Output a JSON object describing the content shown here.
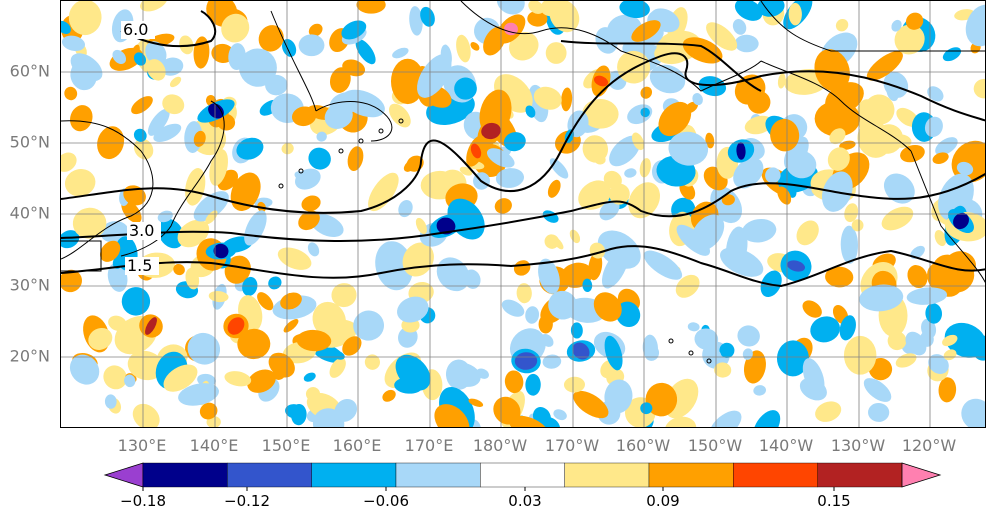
{
  "map": {
    "lat_labels": [
      "60°N",
      "50°N",
      "40°N",
      "30°N",
      "20°N"
    ],
    "lon_labels": [
      "130°E",
      "140°E",
      "150°E",
      "160°E",
      "170°E",
      "180°W",
      "170°W",
      "160°W",
      "150°W",
      "140°W",
      "130°W",
      "120°W"
    ],
    "contour_labels": [
      "6.0",
      "3.0",
      "1.5"
    ],
    "colors": {
      "land_outline": "#000000",
      "grid": "#808080",
      "contour": "#000000"
    }
  },
  "colorbar": {
    "colors": [
      "#9a3fd0",
      "#00008b",
      "#3355cc",
      "#00b0f0",
      "#a8d8f8",
      "#ffffff",
      "#ffe88a",
      "#ffa000",
      "#ff4500",
      "#b22222",
      "#ff80b0"
    ],
    "tick_labels": [
      "−0.18",
      "−0.12",
      "−0.06",
      "0.03",
      "0.09",
      "0.15"
    ]
  }
}
